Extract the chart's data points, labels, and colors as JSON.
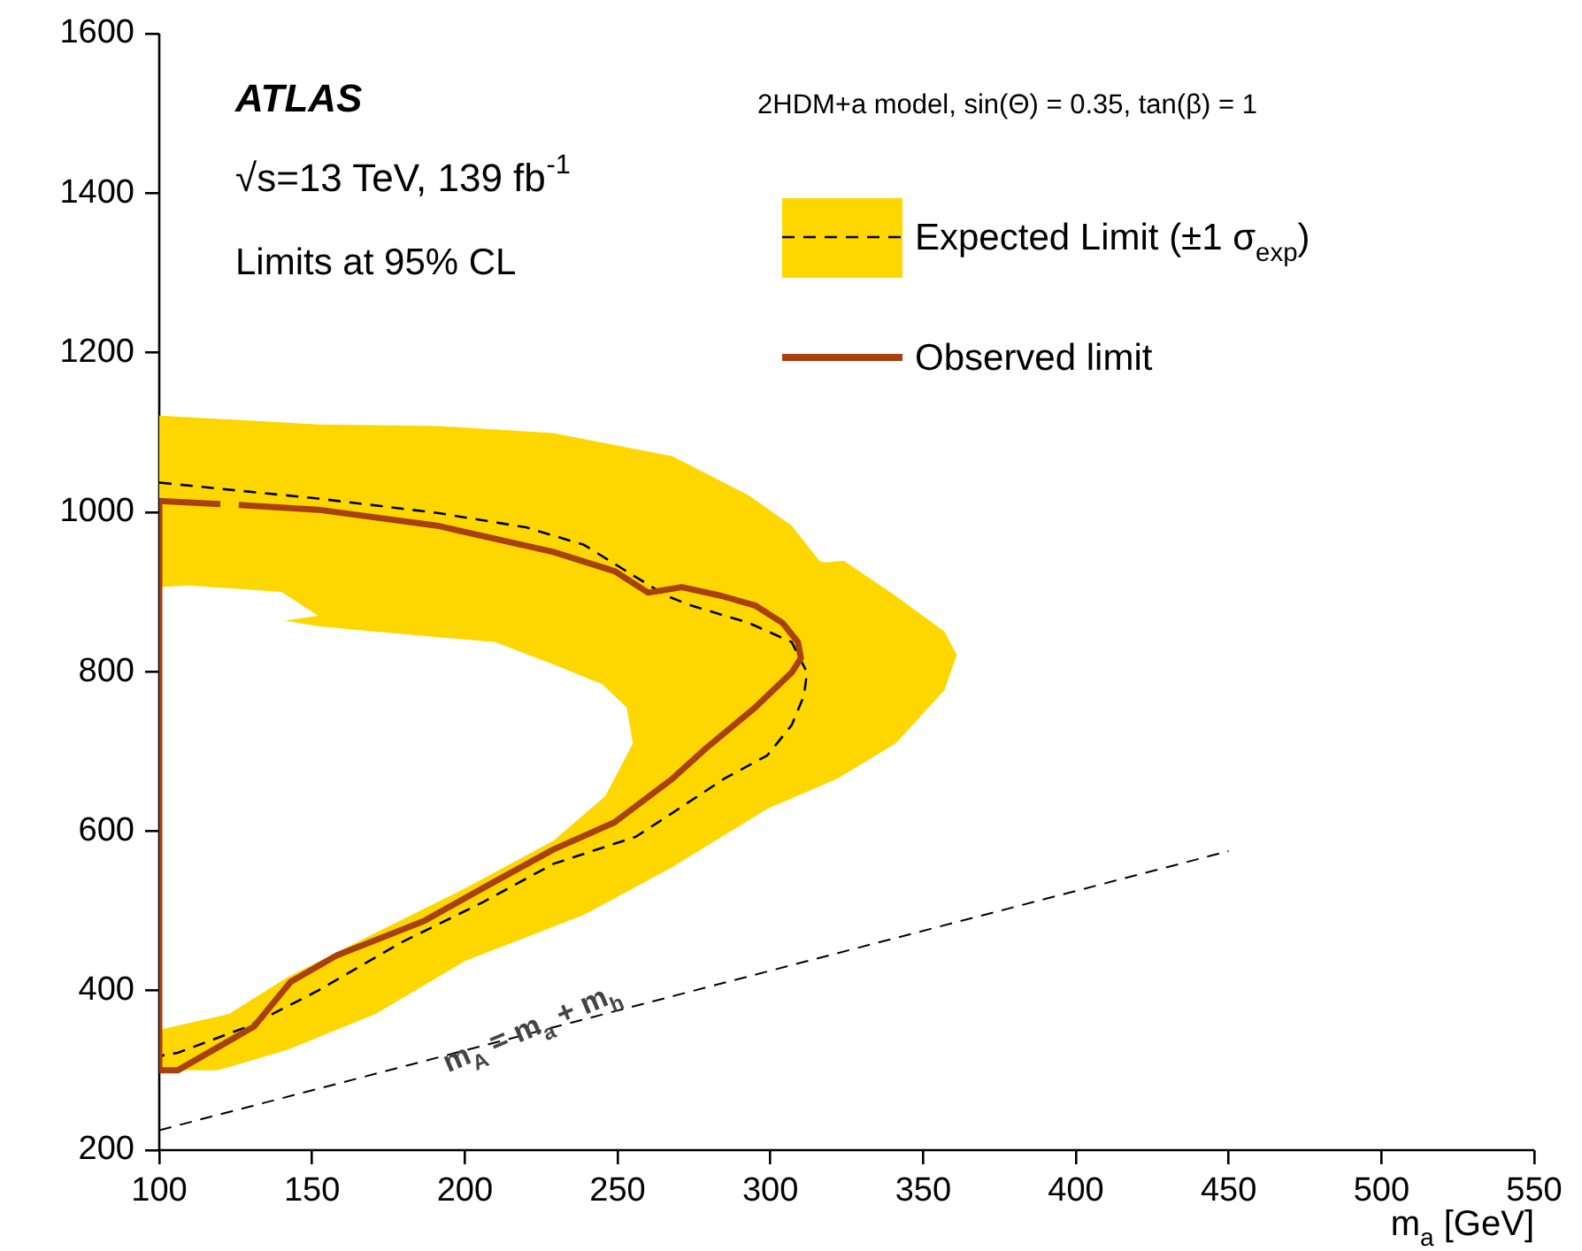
{
  "chart_data": {
    "type": "line",
    "xlabel": "m$_{a}$ [GeV]",
    "xlim": [
      100,
      550
    ],
    "xticks": [
      100,
      150,
      200,
      250,
      300,
      350,
      400,
      450,
      500,
      550
    ],
    "ylim": [
      200,
      1600
    ],
    "yticks": [
      200,
      400,
      600,
      800,
      1000,
      1200,
      1400,
      1600
    ],
    "marker": "none",
    "legend": "top right",
    "series": [
      {
        "type": "area",
        "color": "#fed700",
        "x": [
          100,
          152,
          191,
          229,
          268,
          293,
          307,
          316,
          318,
          324,
          341,
          357,
          361,
          357,
          341,
          322,
          299,
          268,
          239,
          200,
          171,
          142,
          119,
          100,
          100,
          123,
          142,
          171,
          200,
          229,
          246,
          255,
          253,
          245,
          231,
          210,
          171,
          152,
          141,
          152,
          140,
          110,
          100
        ],
        "values": [
          1121,
          1110,
          1108,
          1099,
          1070,
          1021,
          983,
          939,
          937,
          939,
          895,
          850,
          821,
          777,
          710,
          666,
          628,
          555,
          495,
          437,
          371,
          326,
          300,
          300,
          351,
          371,
          417,
          473,
          528,
          588,
          644,
          710,
          755,
          784,
          806,
          837,
          850,
          857,
          864,
          870,
          900,
          908,
          906
        ]
      },
      {
        "type": "line",
        "name": "Expected Limit (±1 σ$_{exp}$)",
        "color": "#000000",
        "line_style": "dashed",
        "x": [
          100,
          152,
          191,
          220,
          239,
          252,
          266,
          274,
          293,
          307,
          312,
          311,
          307,
          299,
          285,
          270,
          256,
          229,
          206,
          179,
          152,
          129,
          106,
          100
        ],
        "values": [
          1037,
          1017,
          999,
          981,
          959,
          928,
          895,
          883,
          861,
          837,
          799,
          770,
          733,
          695,
          666,
          628,
          593,
          559,
          511,
          460,
          400,
          355,
          322,
          318
        ]
      },
      {
        "type": "line",
        "color": "#000000",
        "line_style": "dashed",
        "x": [
          100,
          450
        ],
        "values": [
          225,
          575
        ]
      },
      {
        "type": "line",
        "name": "Observed limit",
        "color": "#a8400f",
        "line_style": "solid",
        "x": [
          126,
          152,
          191,
          229,
          249,
          260,
          271,
          284,
          295,
          304,
          309,
          310,
          307,
          295,
          279,
          268,
          249,
          229,
          208,
          187,
          158,
          143,
          131,
          121,
          106,
          100,
          100,
          120
        ],
        "values": [
          1009,
          1003,
          983,
          950,
          926,
          899,
          906,
          895,
          883,
          861,
          837,
          817,
          799,
          755,
          704,
          666,
          611,
          577,
          533,
          488,
          444,
          411,
          355,
          333,
          300,
          300,
          1014,
          1010
        ]
      }
    ],
    "annotations": [
      "ATLAS",
      "√s=13 TeV, 139 fb$^{-1}$",
      "Limits at 95% CL",
      "2HDM+a model, sin(Θ) = 0.35, tan(β) = 1",
      "m$_{A}$ = m$_{a}$ + m$_{h}$"
    ]
  }
}
